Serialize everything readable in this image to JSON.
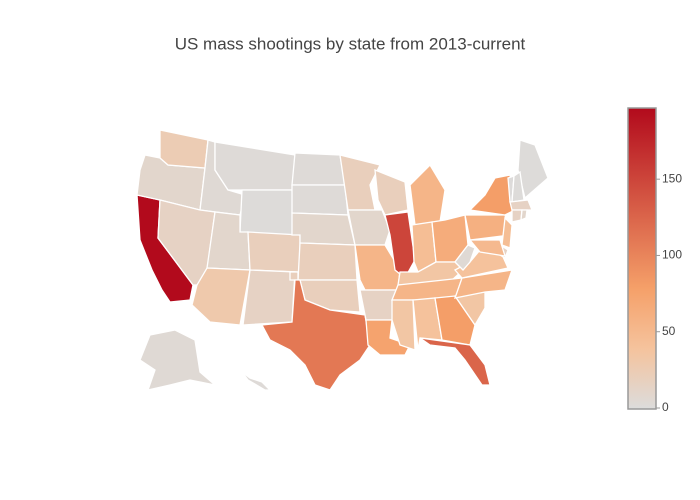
{
  "chart_data": {
    "type": "choropleth",
    "title": "US mass shootings by state from 2013-current",
    "values": [
      196,
      10,
      25,
      5,
      3,
      2,
      15,
      10,
      30,
      20,
      15,
      3,
      3,
      10,
      20,
      20,
      110,
      20,
      10,
      55,
      15,
      75,
      20,
      150,
      55,
      45,
      65,
      35,
      55,
      35,
      40,
      80,
      125,
      35,
      55,
      40,
      5,
      60,
      80,
      45,
      15,
      50,
      2,
      1,
      2,
      15,
      15,
      10,
      5,
      3
    ],
    "zlim": [
      0,
      196
    ],
    "zticks": [
      0,
      50,
      100,
      150
    ],
    "colorscale": [
      [
        0,
        "rgb(220,220,220)"
      ],
      [
        0.2,
        "rgb(245,195,157)"
      ],
      [
        0.4,
        "rgb(245,160,105)"
      ],
      [
        1,
        "rgb(178,10,28)"
      ]
    ]
  }
}
